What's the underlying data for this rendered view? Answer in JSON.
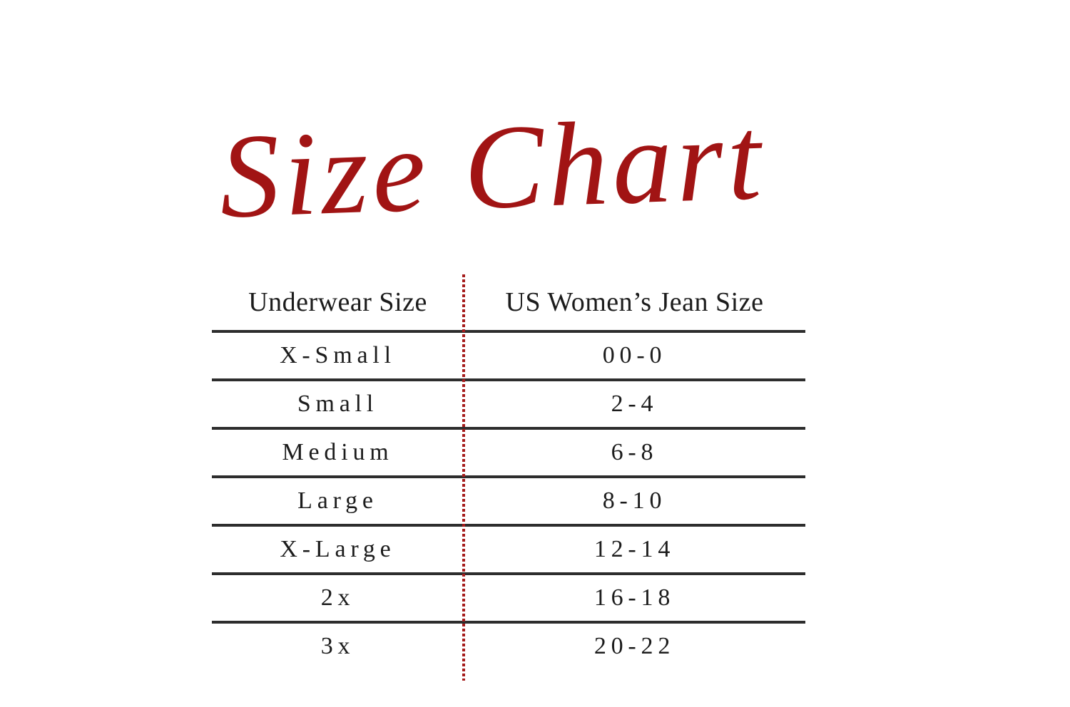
{
  "title": "Size Chart",
  "table": {
    "columns": [
      {
        "label": "Underwear Size"
      },
      {
        "label": "US Women’s Jean Size"
      }
    ],
    "rows": [
      {
        "underwear_size": "X-Small",
        "jean_size": "00-0"
      },
      {
        "underwear_size": "Small",
        "jean_size": "2-4"
      },
      {
        "underwear_size": "Medium",
        "jean_size": "6-8"
      },
      {
        "underwear_size": "Large",
        "jean_size": "8-10"
      },
      {
        "underwear_size": "X-Large",
        "jean_size": "12-14"
      },
      {
        "underwear_size": "2x",
        "jean_size": "16-18"
      },
      {
        "underwear_size": "3x",
        "jean_size": "20-22"
      }
    ]
  },
  "colors": {
    "title_red": "#A11414",
    "divider_red": "#A51C1C",
    "rule_dark": "#2D2D2D",
    "text": "#1C1C1C",
    "background": "#FFFFFF"
  }
}
